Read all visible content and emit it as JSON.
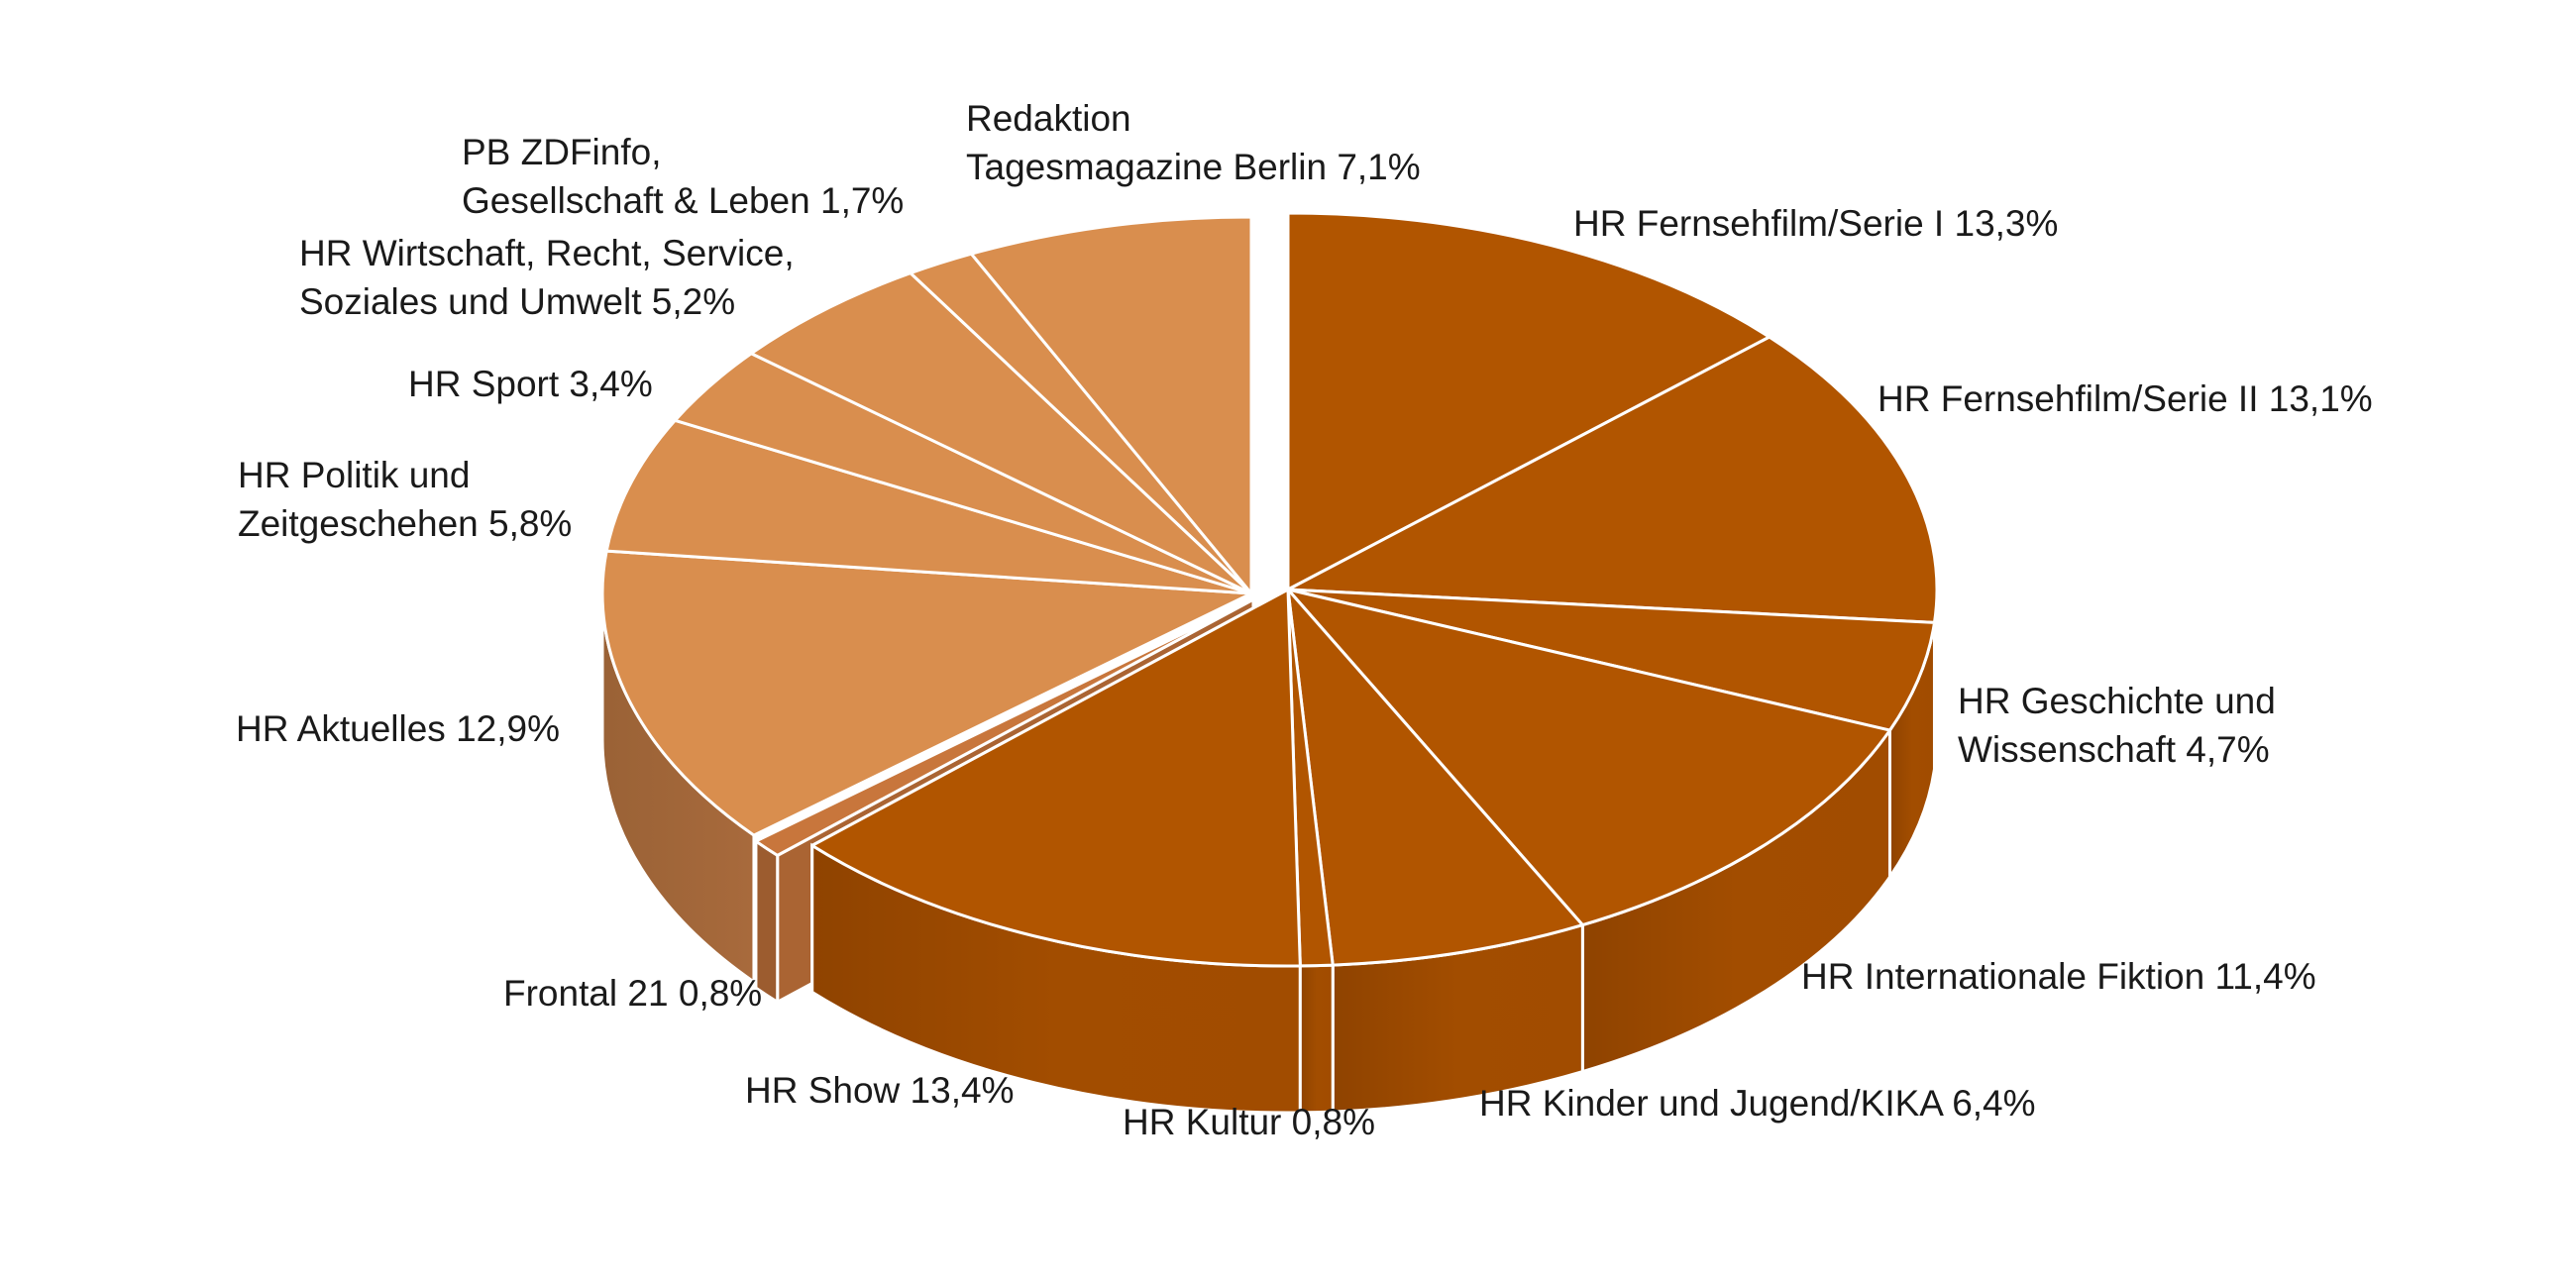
{
  "chart_data": {
    "type": "pie",
    "title": "",
    "legend": "none",
    "three_d": true,
    "exploded_group": "HR Fiktion/Show/Kultur/Jugend/Geschichte",
    "colors": {
      "dark": "#b15500",
      "light": "#d98e4e",
      "mid": "#c8763c"
    },
    "slices": [
      {
        "label": "HR Fernsehfilm/Serie I",
        "value": 13.3,
        "value_label": "13,3%",
        "lines": [
          "HR Fernsehfilm/Serie I 13,3%"
        ],
        "color": "#b15500"
      },
      {
        "label": "HR Fernsehfilm/Serie II",
        "value": 13.1,
        "value_label": "13,1%",
        "lines": [
          "HR Fernsehfilm/Serie II 13,1%"
        ],
        "color": "#b15500"
      },
      {
        "label": "HR Geschichte und Wissenschaft",
        "value": 4.7,
        "value_label": "4,7%",
        "lines": [
          "HR Geschichte und",
          "Wissenschaft 4,7%"
        ],
        "color": "#b15500"
      },
      {
        "label": "HR Internationale Fiktion",
        "value": 11.4,
        "value_label": "11,4%",
        "lines": [
          "HR Internationale Fiktion 11,4%"
        ],
        "color": "#b15500"
      },
      {
        "label": "HR Kinder und Jugend/KIKA",
        "value": 6.4,
        "value_label": "6,4%",
        "lines": [
          "HR Kinder und Jugend/KIKA  6,4%"
        ],
        "color": "#b15500"
      },
      {
        "label": "HR Kultur",
        "value": 0.8,
        "value_label": "0,8%",
        "lines": [
          "HR Kultur  0,8%"
        ],
        "color": "#b15500"
      },
      {
        "label": "HR Show",
        "value": 13.4,
        "value_label": "13,4%",
        "lines": [
          "HR Show 13,4%"
        ],
        "color": "#b15500"
      },
      {
        "label": "Frontal 21",
        "value": 0.8,
        "value_label": "0,8%",
        "lines": [
          "Frontal 21  0,8%"
        ],
        "color": "#c8763c"
      },
      {
        "label": "HR Aktuelles",
        "value": 12.9,
        "value_label": "12,9%",
        "lines": [
          "HR Aktuelles  12,9%"
        ],
        "color": "#d98e4e"
      },
      {
        "label": "HR Politik und Zeitgeschehen",
        "value": 5.8,
        "value_label": "5,8%",
        "lines": [
          "HR Politik und",
          "Zeitgeschehen 5,8%"
        ],
        "color": "#d98e4e"
      },
      {
        "label": "HR Sport",
        "value": 3.4,
        "value_label": "3,4%",
        "lines": [
          "HR Sport  3,4%"
        ],
        "color": "#d98e4e"
      },
      {
        "label": "HR Wirtschaft, Recht, Service, Soziales und Umwelt",
        "value": 5.2,
        "value_label": "5,2%",
        "lines": [
          "HR Wirtschaft, Recht, Service,",
          "Soziales und Umwelt  5,2%"
        ],
        "color": "#d98e4e"
      },
      {
        "label": "PB ZDFinfo, Gesellschaft & Leben",
        "value": 1.7,
        "value_label": "1,7%",
        "lines": [
          "PB ZDFinfo,",
          "Gesellschaft & Leben 1,7%"
        ],
        "color": "#d98e4e"
      },
      {
        "label": "Redaktion Tagesmagazine Berlin",
        "value": 7.1,
        "value_label": "7,1%",
        "lines": [
          "Redaktion",
          "Tagesmagazine Berlin  7,1%"
        ],
        "color": "#d98e4e"
      }
    ]
  }
}
